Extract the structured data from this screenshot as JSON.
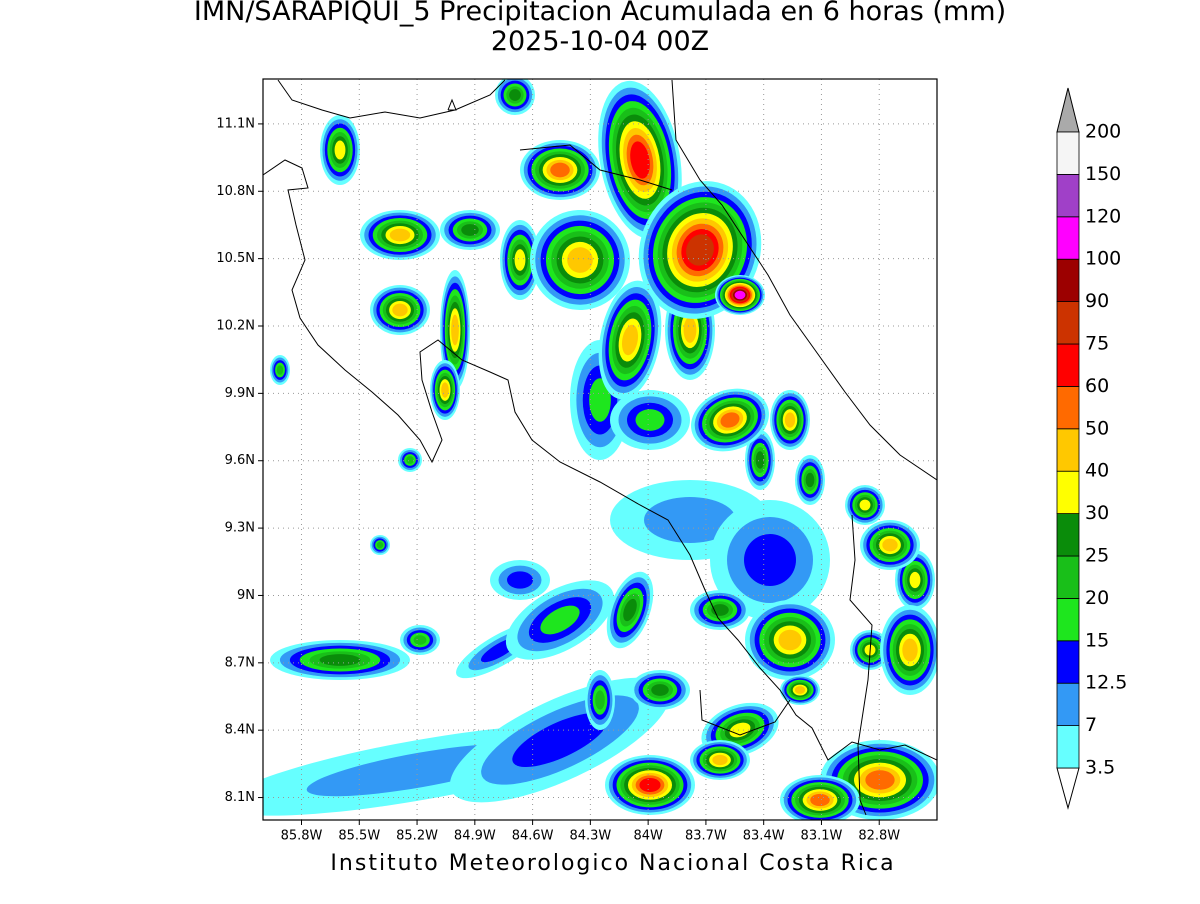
{
  "title": "IMN/SARAPIQUI_5 Precipitacion Acumulada en 6 horas (mm)",
  "subtitle": "2025-10-04 00Z",
  "map": {
    "xlim": [
      -86.0,
      -82.5
    ],
    "ylim": [
      8.0,
      11.3
    ],
    "xticks": [
      {
        "value": -85.8,
        "label": "85.8W"
      },
      {
        "value": -85.5,
        "label": "85.5W"
      },
      {
        "value": -85.2,
        "label": "85.2W"
      },
      {
        "value": -84.9,
        "label": "84.9W"
      },
      {
        "value": -84.6,
        "label": "84.6W"
      },
      {
        "value": -84.3,
        "label": "84.3W"
      },
      {
        "value": -84.0,
        "label": "84W"
      },
      {
        "value": -83.7,
        "label": "83.7W"
      },
      {
        "value": -83.4,
        "label": "83.4W"
      },
      {
        "value": -83.1,
        "label": "83.1W"
      },
      {
        "value": -82.8,
        "label": "82.8W"
      }
    ],
    "yticks": [
      {
        "value": 8.1,
        "label": "8.1N"
      },
      {
        "value": 8.4,
        "label": "8.4N"
      },
      {
        "value": 8.7,
        "label": "8.7N"
      },
      {
        "value": 9.0,
        "label": "9N"
      },
      {
        "value": 9.3,
        "label": "9.3N"
      },
      {
        "value": 9.6,
        "label": "9.6N"
      },
      {
        "value": 9.9,
        "label": "9.9N"
      },
      {
        "value": 10.2,
        "label": "10.2N"
      },
      {
        "value": 10.5,
        "label": "10.5N"
      },
      {
        "value": 10.8,
        "label": "10.8N"
      },
      {
        "value": 11.1,
        "label": "11.1N"
      }
    ],
    "grid": true
  },
  "colorbar": {
    "levels": [
      3.5,
      7,
      12.5,
      15,
      20,
      25,
      30,
      40,
      50,
      60,
      75,
      90,
      100,
      120,
      150,
      200
    ],
    "colors": [
      "#66ffff",
      "#3399f5",
      "#0000ff",
      "#1ee61e",
      "#19bf19",
      "#0a8c0a",
      "#ffff00",
      "#ffc800",
      "#ff6a00",
      "#ff0000",
      "#cc3300",
      "#9c0000",
      "#ff00ff",
      "#a040c8",
      "#f5f5f5"
    ],
    "over_color": "#aaaaaa",
    "under_color": "#ffffff"
  },
  "footer": "Instituto Meteorologico Nacional Costa Rica"
}
